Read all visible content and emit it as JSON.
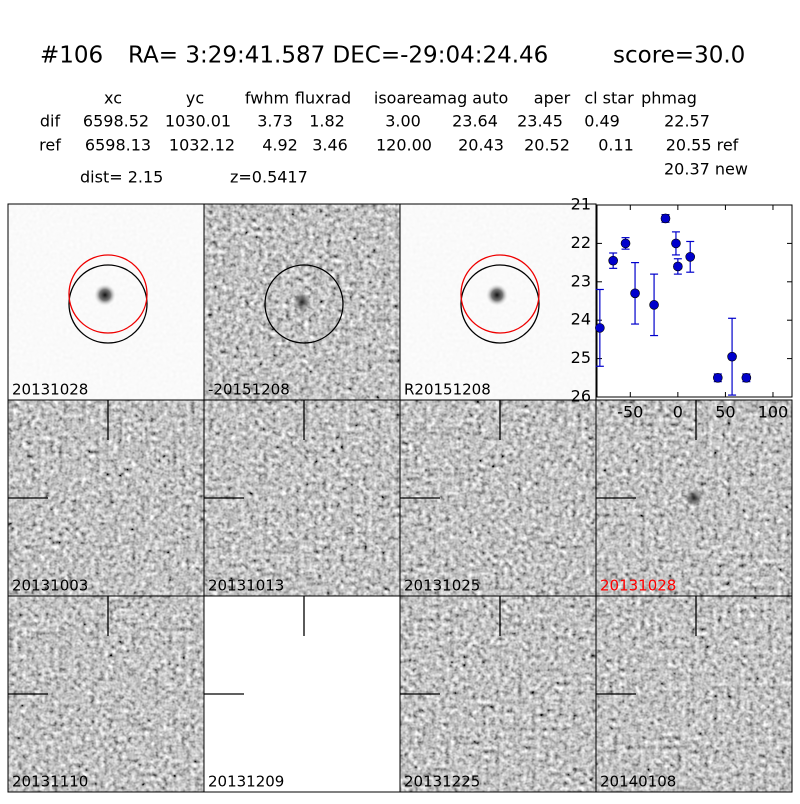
{
  "header": {
    "id": "#106",
    "coords": "RA= 3:29:41.587 DEC=-29:04:24.46",
    "score": "score=30.0"
  },
  "table": {
    "columns": [
      "xc",
      "yc",
      "fwhm",
      "fluxrad",
      "isoarea",
      "mag auto",
      "aper",
      "cl star",
      "phmag"
    ],
    "rows": [
      [
        "dif",
        "6598.52",
        "1030.01",
        "3.73",
        "1.82",
        "3.00",
        "23.64",
        "23.45",
        "0.49",
        "22.57"
      ],
      [
        "ref",
        "6598.13",
        "1032.12",
        "4.92",
        "3.46",
        "120.00",
        "20.43",
        "20.52",
        "0.11",
        "20.55 ref"
      ]
    ],
    "extra": "20.37 new"
  },
  "distance": "dist=  2.15",
  "redshift": "z=0.5417",
  "panels": [
    "20131028",
    "-20151208",
    "R20151208",
    "20131003",
    "20131013",
    "20131025",
    "20131028",
    "20131110",
    "20131209",
    "20131225",
    "20140108"
  ],
  "chart_data": {
    "type": "errorbar",
    "x": [
      -82,
      -68,
      -55,
      -45,
      -25,
      -13,
      -2,
      0,
      13,
      42,
      57,
      72
    ],
    "values": [
      24.2,
      22.45,
      22.0,
      23.3,
      23.6,
      21.35,
      22.0,
      22.6,
      22.35,
      25.5,
      24.95,
      25.5
    ],
    "errors": [
      1.0,
      0.2,
      0.15,
      0.8,
      0.8,
      0.1,
      0.3,
      0.2,
      0.4,
      0.1,
      1.0,
      0.1
    ],
    "color": "#0000cc",
    "xlim": [
      -85,
      120
    ],
    "ylim": [
      26,
      21
    ],
    "xticks": [
      -50,
      0,
      50,
      100
    ],
    "yticks": [
      21,
      22,
      23,
      24,
      25,
      26
    ]
  }
}
